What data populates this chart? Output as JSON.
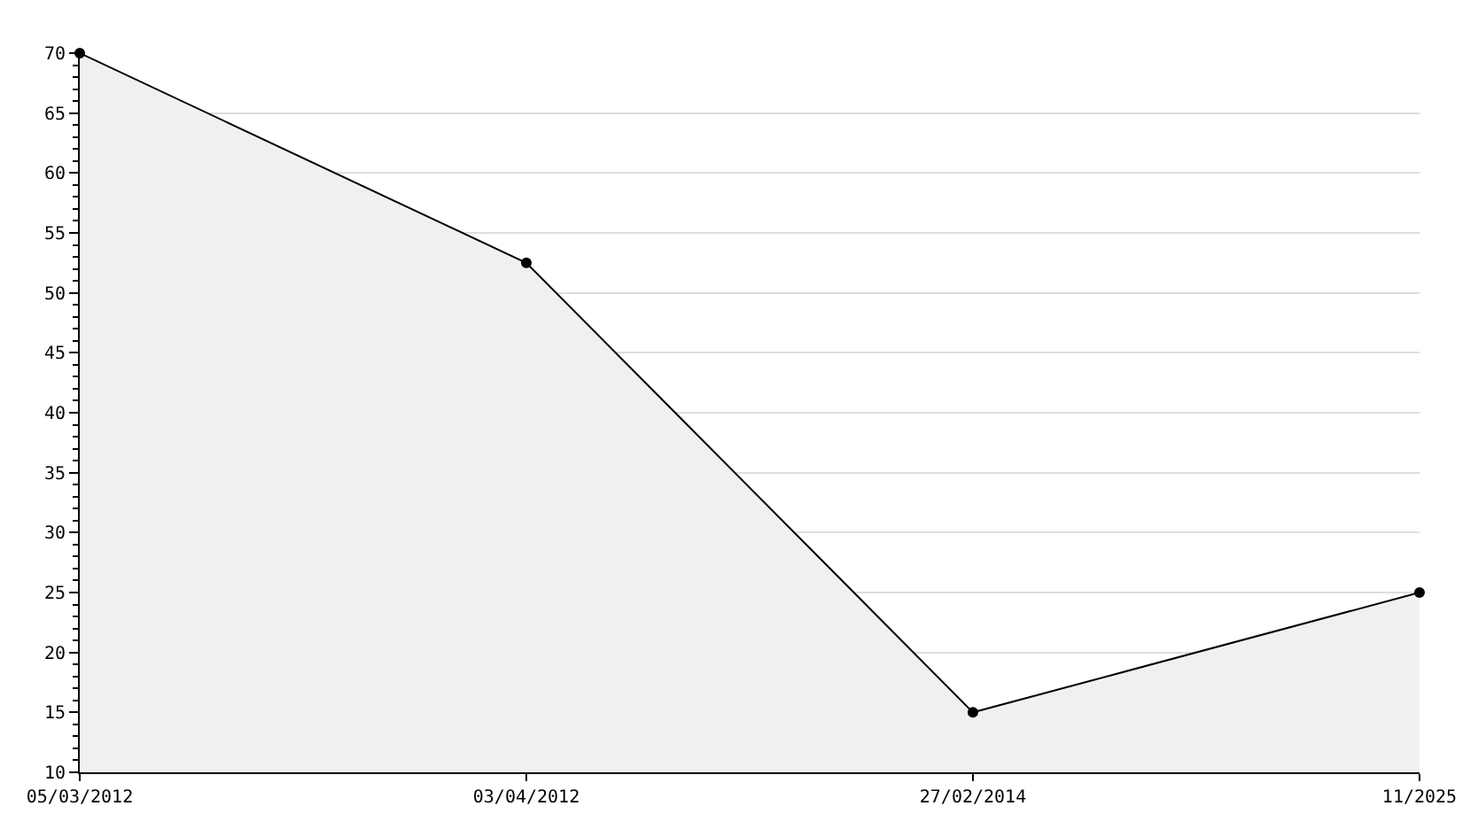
{
  "chart_data": {
    "type": "area",
    "categories": [
      "05/03/2012",
      "03/04/2012",
      "27/02/2014",
      "11/2025"
    ],
    "series": [
      {
        "color": "#000000",
        "values": [
          70,
          52.5,
          15,
          25
        ]
      }
    ],
    "ylim": [
      10,
      70
    ],
    "yticks": [
      10,
      15,
      20,
      25,
      30,
      35,
      40,
      45,
      50,
      55,
      60,
      65,
      70
    ],
    "grid": "y",
    "marker": "circle",
    "line_style": "solid"
  }
}
